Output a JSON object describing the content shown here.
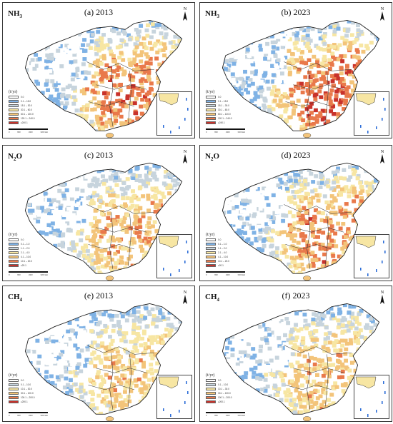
{
  "legend_unit": "(t/yr)",
  "north_label": "N",
  "scale_ticks": [
    "0",
    "800",
    "1600",
    "3200 km"
  ],
  "ramp": [
    "#ffffff",
    "#7fb2e5",
    "#c7d4dd",
    "#f7e6a3",
    "#f3c47a",
    "#e9794b",
    "#c8322b"
  ],
  "panels": [
    {
      "gas": "NH",
      "sub": "3",
      "title": "(a) 2013",
      "intensity": 0.78,
      "legend": [
        "0.0",
        "0.1 – 15.0",
        "15.1 – 30.0",
        "30.1 – 60.0",
        "60.1 – 120.0",
        "120.1 – 240.0",
        "≥240.1"
      ]
    },
    {
      "gas": "NH",
      "sub": "3",
      "title": "(b) 2023",
      "intensity": 0.82,
      "legend": [
        "0.0",
        "0.1 – 15.0",
        "15.1 – 30.0",
        "30.1 – 60.0",
        "60.1 – 120.0",
        "120.1 – 240.0",
        "≥240.1"
      ]
    },
    {
      "gas": "N",
      "sub": "2",
      "gas2": "O",
      "title": "(c) 2013",
      "intensity": 0.62,
      "legend": [
        "0.0",
        "0.1 – 1.0",
        "1.1 – 2.0",
        "2.1 – 4.0",
        "4.1 – 10.0",
        "10.1 – 20.0",
        "≥20.1"
      ]
    },
    {
      "gas": "N",
      "sub": "2",
      "gas2": "O",
      "title": "(d) 2023",
      "intensity": 0.72,
      "legend": [
        "0.0",
        "0.1 – 1.0",
        "1.1 – 2.0",
        "2.1 – 4.0",
        "4.1 – 10.0",
        "10.1 – 20.0",
        "≥20.1"
      ]
    },
    {
      "gas": "CH",
      "sub": "4",
      "title": "(e) 2013",
      "intensity": 0.55,
      "legend": [
        "0.0",
        "0.1 – 10.0",
        "10.1 – 30.0",
        "30.1 – 100.0",
        "100.1 – 200.0",
        "≥200.1"
      ]
    },
    {
      "gas": "CH",
      "sub": "4",
      "title": "(f) 2023",
      "intensity": 0.58,
      "legend": [
        "0.0",
        "0.1 – 10.0",
        "10.1 – 30.0",
        "30.1 – 100.0",
        "100.1 – 200.0",
        "≥200.1"
      ]
    }
  ]
}
